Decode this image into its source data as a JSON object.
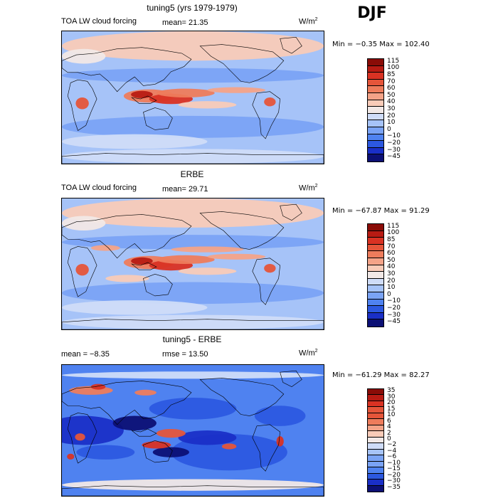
{
  "season": "DJF",
  "colors": {
    "diverging": [
      "#0c1075",
      "#1a2fc7",
      "#2c58e0",
      "#4f82f0",
      "#7aa3f5",
      "#a6c3f8",
      "#cfdcf8",
      "#f1e8e6",
      "#f8cbb8",
      "#f4a388",
      "#ee7c5c",
      "#e5553a",
      "#d93223",
      "#b81b13",
      "#8a0c07"
    ]
  },
  "panels": [
    {
      "title": "tuning5 (yrs 1979-1979)",
      "left_label": "TOA LW cloud forcing",
      "mean_label": "mean=  21.35",
      "rmse_label": "",
      "units_base": "W/m",
      "units_exp": "2",
      "minmax": "Min =  −0.35 Max =  102.40",
      "colorbar_levels": [
        "115",
        "100",
        "85",
        "70",
        "60",
        "50",
        "40",
        "30",
        "20",
        "10",
        "0",
        "−10",
        "−20",
        "−30",
        "−45"
      ]
    },
    {
      "title": "ERBE",
      "left_label": "TOA LW cloud forcing",
      "mean_label": "mean=  29.71",
      "rmse_label": "",
      "units_base": "W/m",
      "units_exp": "2",
      "minmax": "Min =  −67.87 Max =   91.29",
      "colorbar_levels": [
        "115",
        "100",
        "85",
        "70",
        "60",
        "50",
        "40",
        "30",
        "20",
        "10",
        "0",
        "−10",
        "−20",
        "−30",
        "−45"
      ]
    },
    {
      "title": "tuning5 - ERBE",
      "left_label": "mean =  −8.35",
      "mean_label": "",
      "rmse_label": "rmse =   13.50",
      "units_base": "W/m",
      "units_exp": "2",
      "minmax": "Min =  −61.29 Max =   82.27",
      "colorbar_levels": [
        "35",
        "30",
        "20",
        "15",
        "10",
        "6",
        "4",
        "2",
        "0",
        "−2",
        "−4",
        "−6",
        "−10",
        "−15",
        "−20",
        "−30",
        "−35"
      ]
    }
  ]
}
